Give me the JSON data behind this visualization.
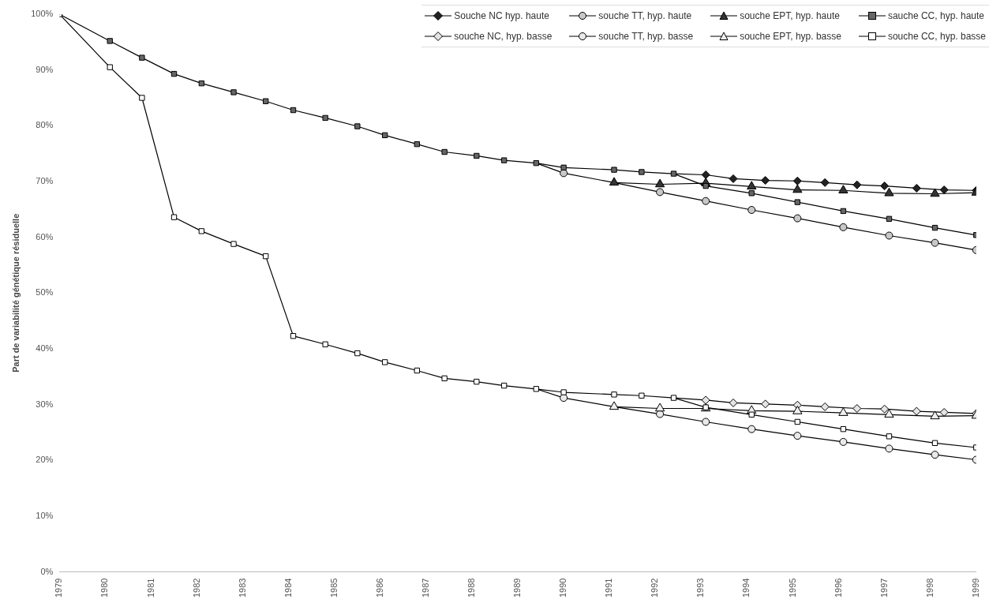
{
  "chart_data": {
    "type": "line",
    "ylabel": "Part de variabilité génétique résiduelle",
    "xlim": [
      1979,
      1999
    ],
    "xticks": [
      1979,
      1980,
      1981,
      1982,
      1983,
      1984,
      1985,
      1986,
      1987,
      1988,
      1989,
      1990,
      1991,
      1992,
      1993,
      1994,
      1995,
      1996,
      1997,
      1998,
      1999
    ],
    "ylim": [
      0,
      100
    ],
    "yticks": [
      {
        "value": 0,
        "label": "0%"
      },
      {
        "value": 10,
        "label": "10%"
      },
      {
        "value": 20,
        "label": "20%"
      },
      {
        "value": 30,
        "label": "30%"
      },
      {
        "value": 40,
        "label": "40%"
      },
      {
        "value": 50,
        "label": "50%"
      },
      {
        "value": 60,
        "label": "60%"
      },
      {
        "value": 70,
        "label": "70%"
      },
      {
        "value": 80,
        "label": "80%"
      },
      {
        "value": 90,
        "label": "90%"
      },
      {
        "value": 100,
        "label": "100%"
      }
    ],
    "grid": false,
    "legend": "top right",
    "series": [
      {
        "name": "Souche NC hyp. haute",
        "color": "#222222",
        "marker": "diamond",
        "x": [
          1992.4,
          1993.1,
          1993.7,
          1994.4,
          1995.1,
          1995.7,
          1996.4,
          1997.0,
          1997.7,
          1998.3,
          1999
        ],
        "values": [
          71.4,
          71.2,
          70.5,
          70.2,
          70.1,
          69.8,
          69.4,
          69.2,
          68.8,
          68.5,
          68.4
        ]
      },
      {
        "name": "souche TT, hyp. haute",
        "color": "#c8c8c8",
        "marker": "circle",
        "x": [
          1989.4,
          1990.0,
          1991.1,
          1992.1,
          1993.1,
          1994.1,
          1995.1,
          1996.1,
          1997.1,
          1998.1,
          1999
        ],
        "values": [
          73.3,
          71.5,
          69.8,
          68.1,
          66.5,
          64.9,
          63.4,
          61.8,
          60.3,
          59.0,
          57.7
        ]
      },
      {
        "name": "souche EPT, hyp. haute",
        "color": "#333333",
        "marker": "triangle",
        "x": [
          1991.1,
          1992.1,
          1993.1,
          1994.1,
          1995.1,
          1996.1,
          1997.1,
          1998.1,
          1999
        ],
        "values": [
          69.8,
          69.5,
          69.7,
          69.1,
          68.5,
          68.4,
          67.9,
          67.8,
          68.0
        ]
      },
      {
        "name": "sauche CC, hyp. haute",
        "color": "#666666",
        "marker": "square",
        "x": [
          1979,
          1980.1,
          1980.8,
          1981.5,
          1982.1,
          1982.8,
          1983.5,
          1984.1,
          1984.8,
          1985.5,
          1986.1,
          1986.8,
          1987.4,
          1988.1,
          1988.7,
          1989.4,
          1990.0,
          1991.1,
          1991.7,
          1992.4,
          1993.1,
          1994.1,
          1995.1,
          1996.1,
          1997.1,
          1998.1,
          1999
        ],
        "values": [
          100,
          95.2,
          92.2,
          89.3,
          87.6,
          86.0,
          84.4,
          82.8,
          81.4,
          79.9,
          78.3,
          76.7,
          75.3,
          74.6,
          73.8,
          73.3,
          72.5,
          72.1,
          71.7,
          71.4,
          69.2,
          67.9,
          66.3,
          64.7,
          63.3,
          61.7,
          60.4
        ]
      },
      {
        "name": "souche NC, hyp. basse",
        "color": "#e4e4e4",
        "marker": "diamond",
        "x": [
          1992.4,
          1993.1,
          1993.7,
          1994.4,
          1995.1,
          1995.7,
          1996.4,
          1997.0,
          1997.7,
          1998.3,
          1999
        ],
        "values": [
          31.2,
          30.8,
          30.3,
          30.1,
          29.9,
          29.6,
          29.3,
          29.2,
          28.8,
          28.6,
          28.4
        ]
      },
      {
        "name": "souche TT, hyp. basse",
        "color": "#e9e9e9",
        "marker": "circle",
        "x": [
          1989.4,
          1990.0,
          1991.1,
          1992.1,
          1993.1,
          1994.1,
          1995.1,
          1996.1,
          1997.1,
          1998.1,
          1999
        ],
        "values": [
          32.8,
          31.2,
          29.6,
          28.3,
          26.9,
          25.6,
          24.4,
          23.3,
          22.1,
          21.0,
          20.1
        ]
      },
      {
        "name": "souche EPT, hyp. basse",
        "color": "#efefef",
        "marker": "triangle",
        "x": [
          1991.1,
          1992.1,
          1993.1,
          1994.1,
          1995.1,
          1996.1,
          1997.1,
          1998.1,
          1999
        ],
        "values": [
          29.6,
          29.3,
          29.3,
          28.9,
          28.8,
          28.5,
          28.2,
          27.9,
          28.0
        ]
      },
      {
        "name": "souche CC, hyp. basse",
        "color": "#ffffff",
        "marker": "square",
        "x": [
          1979,
          1980.1,
          1980.8,
          1981.5,
          1982.1,
          1982.8,
          1983.5,
          1984.1,
          1984.8,
          1985.5,
          1986.1,
          1986.8,
          1987.4,
          1988.1,
          1988.7,
          1989.4,
          1990.0,
          1991.1,
          1991.7,
          1992.4,
          1993.1,
          1994.1,
          1995.1,
          1996.1,
          1997.1,
          1998.1,
          1999
        ],
        "values": [
          100,
          90.5,
          85.0,
          63.6,
          61.1,
          58.8,
          56.6,
          42.3,
          40.8,
          39.2,
          37.6,
          36.1,
          34.7,
          34.1,
          33.4,
          32.8,
          32.2,
          31.8,
          31.6,
          31.2,
          29.5,
          28.2,
          26.9,
          25.6,
          24.3,
          23.1,
          22.3
        ]
      }
    ]
  }
}
